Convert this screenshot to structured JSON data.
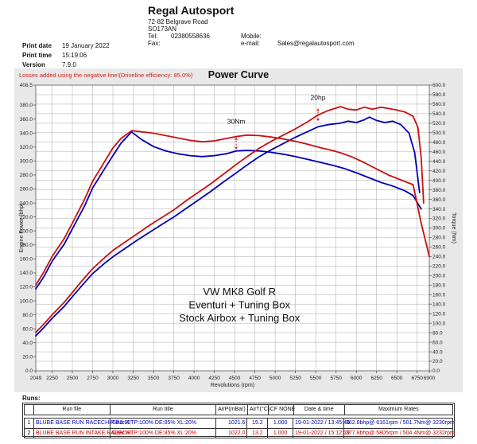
{
  "company": {
    "name": "Regal Autosport",
    "address_line1": "72-82 Belgrave Road",
    "address_line2": "SO173AN",
    "tel_label": "Tel:",
    "tel": "02380558636",
    "fax_label": "Fax:",
    "fax": "",
    "mobile_label": "Mobile:",
    "mobile": "",
    "email_label": "e-mail:",
    "email": "Sales@regalautosport.com"
  },
  "print_info": {
    "date_label": "Print date",
    "date": "19 January 2022",
    "time_label": "Print time",
    "time": "15:19:06",
    "version_label": "Version",
    "version": "7.9.0"
  },
  "notice": "Losses added using the negative line!(Driveline efficiency: 85.0%)",
  "chart_data": {
    "type": "line",
    "title": "Power Curve",
    "xlabel": "Revolutions (rpm)",
    "ylabel_left": "Engine Power (bhp)",
    "ylabel_right": "Torque (Nm)",
    "xlim": [
      2049,
      6900
    ],
    "ylim_left": [
      0,
      408.5
    ],
    "ylim_right": [
      0,
      600
    ],
    "grid": true,
    "x_ticks": [
      2049,
      2250,
      2500,
      2750,
      3000,
      3250,
      3500,
      3750,
      4000,
      4250,
      4500,
      4750,
      5000,
      5250,
      5500,
      5750,
      6000,
      6250,
      6500,
      6750,
      6900
    ],
    "y_ticks_left": [
      408.5,
      380,
      360,
      340,
      320,
      300,
      280,
      260,
      240,
      220,
      200,
      180,
      160,
      140,
      120,
      100,
      80,
      60,
      40,
      20,
      0
    ],
    "y_ticks_right": [
      600,
      580,
      560,
      540,
      520,
      500,
      480,
      460,
      440,
      420,
      400,
      380,
      360,
      340,
      320,
      300,
      280,
      260,
      240,
      220,
      200,
      180,
      160,
      140,
      120,
      100,
      80,
      60,
      40,
      20,
      0
    ],
    "overlay_text": [
      "VW MK8 Golf R",
      "Eventuri + Tuning Box",
      "Stock Airbox + Tuning Box"
    ],
    "annotations": [
      {
        "text": "20hp",
        "rpm": 5528,
        "axis": "left",
        "text_y": 391,
        "from_y": 375,
        "to_y": 357
      },
      {
        "text": "30Nm",
        "rpm": 4520,
        "axis": "right",
        "text_y": 524,
        "from_y": 490,
        "to_y": 465
      }
    ],
    "series": [
      {
        "name": "run1-power-bhp",
        "color": "#0000b4",
        "axis": "left",
        "x": [
          2049,
          2150,
          2250,
          2400,
          2500,
          2650,
          2750,
          2900,
          3000,
          3150,
          3300,
          3450,
          3600,
          3750,
          3900,
          4050,
          4200,
          4350,
          4520,
          4650,
          4800,
          4950,
          5100,
          5250,
          5400,
          5530,
          5650,
          5800,
          5900,
          6000,
          6100,
          6161,
          6250,
          6350,
          6450,
          6550,
          6650,
          6720,
          6780
        ],
        "y": [
          50,
          62,
          75,
          92,
          106,
          126,
          139,
          154,
          163,
          175,
          187,
          198,
          209,
          220,
          232,
          244,
          256,
          269,
          283,
          294,
          306,
          316,
          325,
          334,
          342,
          349,
          352,
          354,
          357,
          355,
          359,
          362.8,
          358,
          355,
          357,
          352,
          340,
          312,
          255
        ]
      },
      {
        "name": "run1-torque-nm",
        "color": "#0000b4",
        "axis": "right",
        "x": [
          2049,
          2150,
          2250,
          2400,
          2500,
          2650,
          2750,
          2900,
          3000,
          3100,
          3230,
          3350,
          3500,
          3650,
          3800,
          3950,
          4100,
          4250,
          4400,
          4520,
          4650,
          4800,
          4950,
          5100,
          5250,
          5400,
          5550,
          5700,
          5850,
          6000,
          6150,
          6300,
          6450,
          6600,
          6700,
          6800
        ],
        "y": [
          172,
          198,
          230,
          266,
          298,
          346,
          384,
          425,
          452,
          478,
          501.7,
          486,
          471,
          462,
          456,
          452,
          450,
          452,
          456,
          462,
          463,
          462,
          459,
          455,
          450,
          444,
          438,
          432,
          425,
          416,
          406,
          396,
          388,
          378,
          368,
          340
        ]
      },
      {
        "name": "run2-power-bhp",
        "color": "#cc0f0f",
        "axis": "left",
        "x": [
          2049,
          2150,
          2250,
          2400,
          2500,
          2650,
          2750,
          2900,
          3000,
          3150,
          3300,
          3450,
          3600,
          3750,
          3900,
          4050,
          4200,
          4350,
          4520,
          4650,
          4800,
          4950,
          5100,
          5250,
          5400,
          5530,
          5650,
          5805,
          5900,
          6000,
          6100,
          6200,
          6300,
          6400,
          6500,
          6600,
          6700,
          6760,
          6800,
          6830
        ],
        "y": [
          55,
          67,
          80,
          98,
          112,
          133,
          146,
          162,
          172,
          184,
          196,
          208,
          219,
          230,
          243,
          255,
          267,
          280,
          295,
          306,
          318,
          328,
          337,
          346,
          356,
          366,
          372,
          377.8,
          374,
          373,
          377,
          374,
          377,
          375,
          373,
          370,
          364,
          348,
          305,
          240
        ]
      },
      {
        "name": "run2-torque-nm",
        "color": "#cc0f0f",
        "axis": "right",
        "x": [
          2049,
          2150,
          2250,
          2400,
          2500,
          2650,
          2750,
          2900,
          3000,
          3100,
          3232,
          3350,
          3500,
          3650,
          3800,
          3950,
          4100,
          4250,
          4400,
          4520,
          4650,
          4800,
          4950,
          5100,
          5250,
          5400,
          5550,
          5700,
          5805,
          5950,
          6100,
          6250,
          6400,
          6550,
          6700,
          6800,
          6900
        ],
        "y": [
          180,
          208,
          240,
          278,
          310,
          360,
          398,
          440,
          468,
          488,
          504.4,
          502,
          499,
          494,
          489,
          484,
          481,
          483,
          488,
          492,
          495,
          494,
          491,
          487,
          482,
          476,
          469,
          463,
          458,
          449,
          437,
          424,
          411,
          401,
          391,
          310,
          240
        ]
      }
    ]
  },
  "runs": {
    "label": "Runs:",
    "headers": [
      "",
      "Run file",
      "Run title",
      "AirP(mBar)",
      "AirT(°C)",
      "CF NONE",
      "Date & time",
      "Maximum Rates"
    ],
    "rows": [
      {
        "color": "#0000bb",
        "cells": [
          "1",
          "BLUBE BASE RUN RACECHIP R2.00",
          "Gear:4 TP:100% DE:85% XL:20%",
          "1021.6",
          "15.2",
          "1.000",
          "19-01-2022 / 13:45:46",
          "362.8bhp@ 6161rpm / 501.7Nm@ 3230rpm"
        ]
      },
      {
        "color": "#cc0000",
        "cells": [
          "2",
          "BLUBE BASE RUN INTAKE RACECHI",
          "Gear:4 TP:100% DE:85% XL:20%",
          "1022.0",
          "13.2",
          "1.000",
          "19-01-2022 / 15:12:19",
          "377.8bhp@ 5805rpm / 504.4Nm@ 3232rpm"
        ]
      }
    ]
  }
}
